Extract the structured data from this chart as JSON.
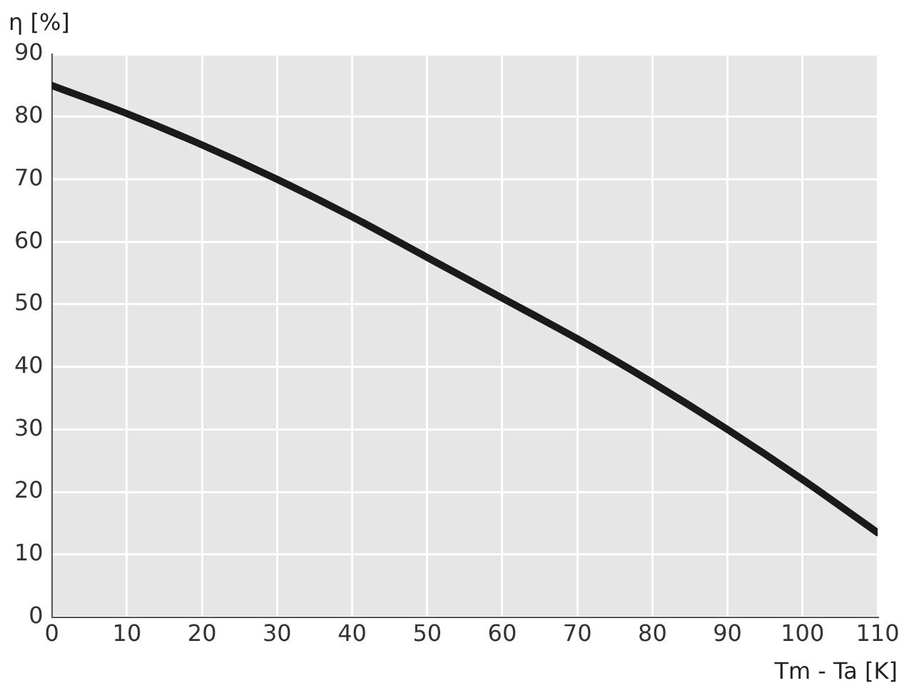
{
  "chart_data": {
    "type": "line",
    "xlabel": "Tm - Ta [K]",
    "ylabel": "η [%]",
    "series": [
      {
        "color": "#1a1a1a",
        "x": [
          0,
          10,
          20,
          30,
          40,
          50,
          60,
          70,
          80,
          90,
          100,
          110
        ],
        "values": [
          85,
          80.5,
          75.5,
          70,
          64,
          57.5,
          51,
          44.5,
          37.5,
          30,
          22,
          13.5
        ]
      }
    ],
    "xlim": [
      0,
      110
    ],
    "xticks": [
      0,
      10,
      20,
      30,
      40,
      50,
      60,
      70,
      80,
      90,
      100,
      110
    ],
    "ylim": [
      0,
      90
    ],
    "yticks": [
      0,
      10,
      20,
      30,
      40,
      50,
      60,
      70,
      80,
      90
    ],
    "grid": true,
    "legend": false,
    "marker": "none",
    "line_style": "solid"
  }
}
